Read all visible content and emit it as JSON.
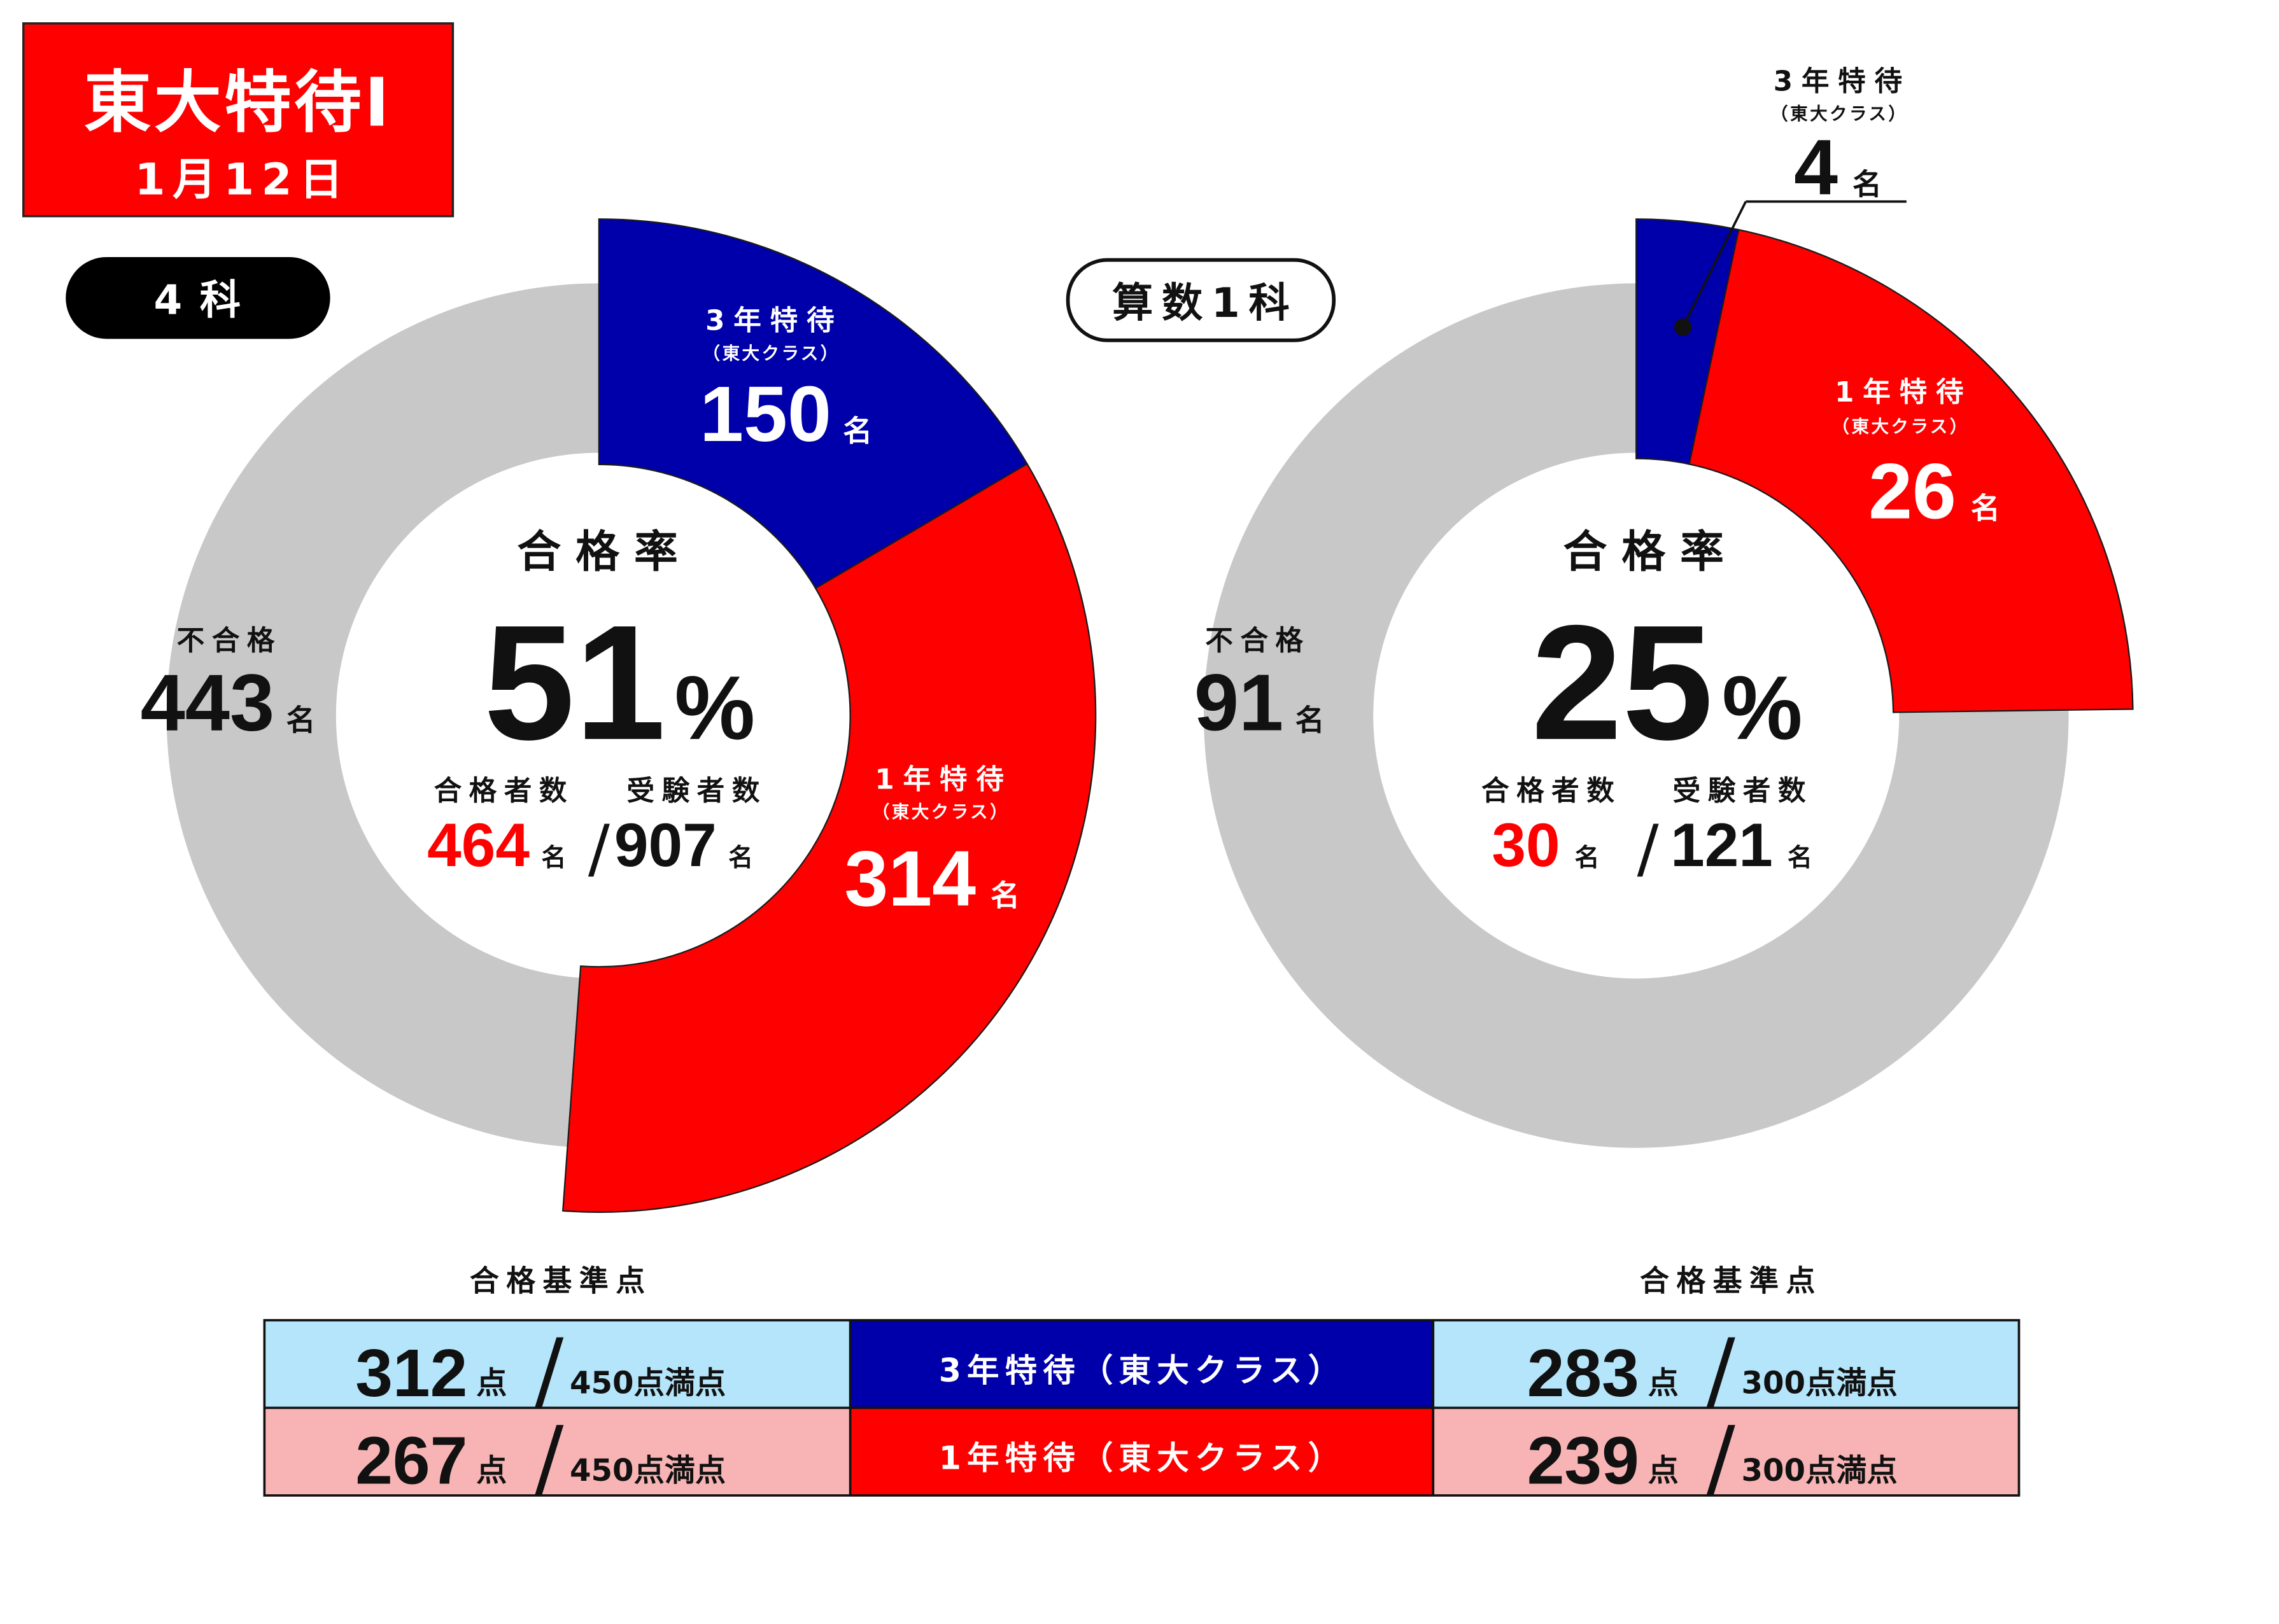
{
  "header": {
    "title": "東大特待Ⅰ",
    "date": "1月12日"
  },
  "colors": {
    "title_bg": "#FF0000",
    "pass_count": "#FF0000",
    "row_tokutai3_label_bg": "#0000AA",
    "row_tokutai3_score_bg": "#B4E5FA",
    "row_tokutai1_label_bg": "#FF0000",
    "row_tokutai1_score_bg": "#F8B4B4"
  },
  "chart_data": [
    {
      "type": "pie",
      "label": "4科",
      "categories": [
        "3年特待",
        "1年特待",
        "不合格"
      ],
      "category_notes": [
        "（東大クラス）",
        "（東大クラス）",
        ""
      ],
      "values": [
        150,
        314,
        443
      ],
      "unit": "名",
      "colors": [
        "#0000AA",
        "#FF0000",
        "#C8C8C8"
      ],
      "center": {
        "title": "合格率",
        "rate": 51,
        "rate_unit": "%",
        "passed_label": "合格者数",
        "passed": 464,
        "examinees_label": "受験者数",
        "examinees": 907,
        "sep": "/"
      }
    },
    {
      "type": "pie",
      "label": "算数1科",
      "categories": [
        "3年特待",
        "1年特待",
        "不合格"
      ],
      "category_notes": [
        "（東大クラス）",
        "（東大クラス）",
        ""
      ],
      "values": [
        4,
        26,
        91
      ],
      "unit": "名",
      "colors": [
        "#0000AA",
        "#FF0000",
        "#C8C8C8"
      ],
      "center": {
        "title": "合格率",
        "rate": 25,
        "rate_unit": "%",
        "passed_label": "合格者数",
        "passed": 30,
        "examinees_label": "受験者数",
        "examinees": 121,
        "sep": "/"
      }
    }
  ],
  "criteria": {
    "heading_left": "合格基準点",
    "heading_right": "合格基準点",
    "point_unit": "点",
    "sep": "/",
    "left_full": "450点満点",
    "right_full": "300点満点",
    "rows": [
      {
        "class_label": "3年特待（東大クラス）",
        "left_score": 312,
        "right_score": 283
      },
      {
        "class_label": "1年特待（東大クラス）",
        "left_score": 267,
        "right_score": 239
      }
    ]
  }
}
